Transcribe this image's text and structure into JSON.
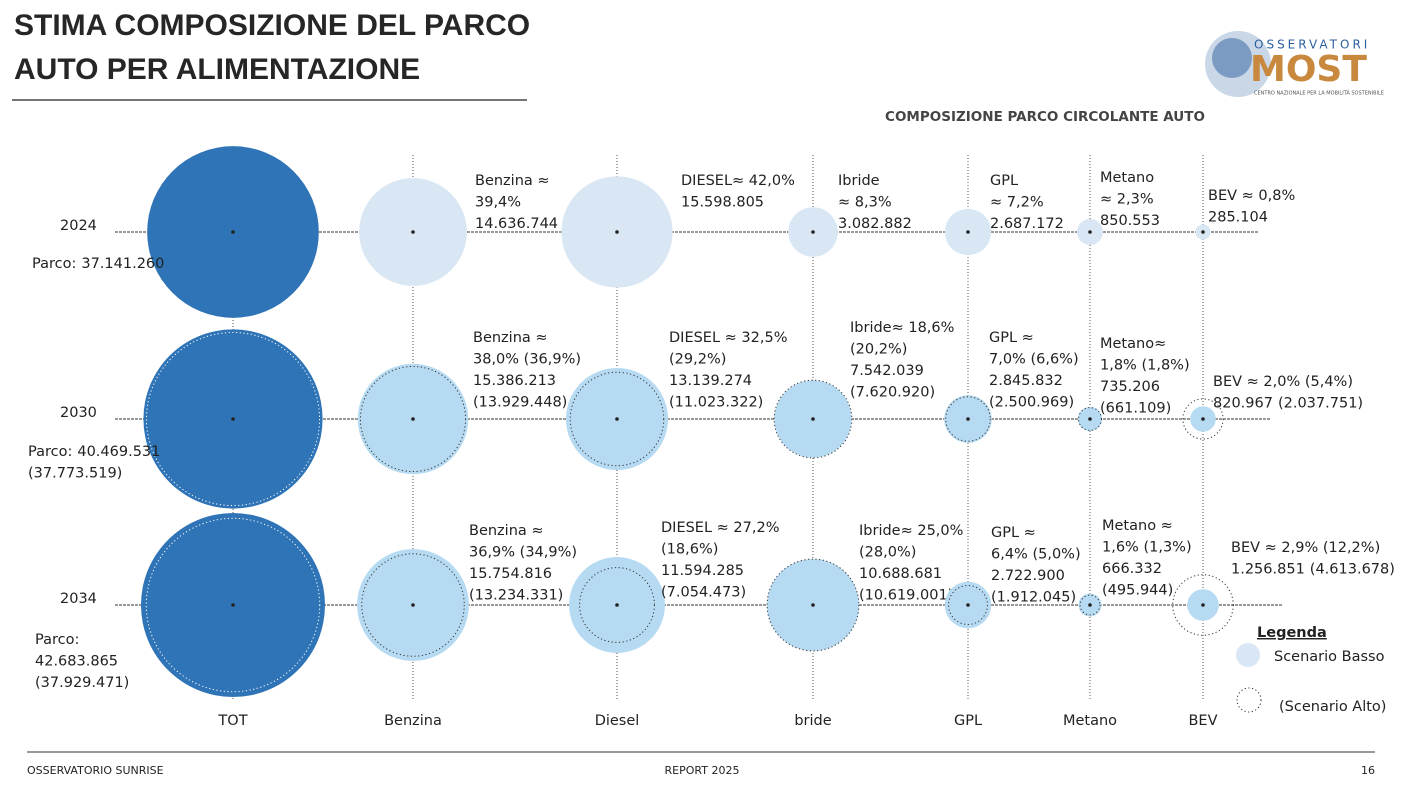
{
  "chart_data": {
    "type": "bubble",
    "title": "STIMA COMPOSIZIONE DEL PARCO AUTO PER ALIMENTAZIONE",
    "subtitle": "COMPOSIZIONE PARCO CIRCOLANTE AUTO",
    "categories": [
      "TOT",
      "Benzina",
      "Diesel",
      "bride",
      "GPL",
      "Metano",
      "BEV"
    ],
    "rows": [
      "2024",
      "2030",
      "2034"
    ],
    "total_color": "#2f74b6",
    "row_colors": [
      "#d9e6f3",
      "#b5daf1",
      "#b5daf1"
    ],
    "alt_color": "#333333",
    "cells": [
      [
        {
          "head": [
            "Parco:"
          ],
          "value": 37141260,
          "value_label": "37.141.260"
        },
        {
          "head": [
            "Benzina ≈",
            "39,4%"
          ],
          "value": 14636744,
          "value_label": "14.636.744"
        },
        {
          "head": [
            "DIESEL≈ 42,0%"
          ],
          "value": 15598805,
          "value_label": "15.598.805"
        },
        {
          "head": [
            "Ibride",
            "≈ 8,3%"
          ],
          "value": 3082882,
          "value_label": "3.082.882"
        },
        {
          "head": [
            "GPL",
            "≈ 7,2%"
          ],
          "value": 2687172,
          "value_label": "2.687.172"
        },
        {
          "head": [
            "Metano",
            "≈ 2,3%"
          ],
          "value": 850553,
          "value_label": "850.553"
        },
        {
          "head": [
            "BEV ≈ 0,8%"
          ],
          "value": 285104,
          "value_label": "285.104"
        }
      ],
      [
        {
          "head": [
            "Parco:"
          ],
          "value": 40469531,
          "value_label": "40.469.531",
          "alt_value": 37773519,
          "alt_value_label": "(37.773.519)"
        },
        {
          "head": [
            "Benzina ≈",
            "38,0% (36,9%)"
          ],
          "value": 15386213,
          "value_label": "15.386.213",
          "alt_value": 13929448,
          "alt_value_label": "(13.929.448)"
        },
        {
          "head": [
            "DIESEL ≈ 32,5%",
            "(29,2%)"
          ],
          "value": 13139274,
          "value_label": "13.139.274",
          "alt_value": 11023322,
          "alt_value_label": "(11.023.322)"
        },
        {
          "head": [
            "Ibride≈ 18,6%",
            "(20,2%)"
          ],
          "value": 7542039,
          "value_label": "7.542.039",
          "alt_value": 7620920,
          "alt_value_label": "(7.620.920)"
        },
        {
          "head": [
            "GPL ≈",
            "7,0% (6,6%)"
          ],
          "value": 2845832,
          "value_label": "2.845.832",
          "alt_value": 2500969,
          "alt_value_label": "(2.500.969)"
        },
        {
          "head": [
            "Metano≈",
            "1,8% (1,8%)"
          ],
          "value": 735206,
          "value_label": "735.206",
          "alt_value": 661109,
          "alt_value_label": "(661.109)"
        },
        {
          "head": [
            "BEV ≈ 2,0% (5,4%)"
          ],
          "value": 820967,
          "value_label": "820.967",
          "alt_value": 2037751,
          "alt_value_label": "(2.037.751)"
        }
      ],
      [
        {
          "head": [
            "Parco:"
          ],
          "value": 42683865,
          "value_label": "42.683.865",
          "alt_value": 37929471,
          "alt_value_label": "(37.929.471)"
        },
        {
          "head": [
            "Benzina ≈",
            "36,9% (34,9%)"
          ],
          "value": 15754816,
          "value_label": "15.754.816",
          "alt_value": 13234331,
          "alt_value_label": "(13.234.331)"
        },
        {
          "head": [
            "DIESEL ≈ 27,2%",
            "(18,6%)"
          ],
          "value": 11594285,
          "value_label": "11.594.285",
          "alt_value": 7054473,
          "alt_value_label": "(7.054.473)"
        },
        {
          "head": [
            "Ibride≈ 25,0%",
            "(28,0%)"
          ],
          "value": 10688681,
          "value_label": "10.688.681",
          "alt_value": 10619001,
          "alt_value_label": "(10.619.001)"
        },
        {
          "head": [
            "GPL ≈",
            "6,4% (5,0%)"
          ],
          "value": 2722900,
          "value_label": "2.722.900",
          "alt_value": 1912045,
          "alt_value_label": "(1.912.045)"
        },
        {
          "head": [
            "Metano ≈",
            "1,6% (1,3%)"
          ],
          "value": 666332,
          "value_label": "666.332",
          "alt_value": 495944,
          "alt_value_label": "(495.944)"
        },
        {
          "head": [
            "BEV ≈ 2,9% (12,2%)"
          ],
          "value": 1256851,
          "value_label": "1.256.851",
          "alt_value": 4613678,
          "alt_value_label": "(4.613.678)"
        }
      ]
    ],
    "legend": {
      "title": "Legenda",
      "items": [
        "Scenario Basso",
        "(Scenario Alto)"
      ]
    }
  },
  "logo": {
    "top": "OSSERVATORI",
    "name": "MOST",
    "tagline": "CENTRO NAZIONALE PER LA MOBILITÀ SOSTENIBILE"
  },
  "footer": {
    "left": "OSSERVATORIO SUNRISE",
    "center": "REPORT 2025",
    "page": "16"
  }
}
